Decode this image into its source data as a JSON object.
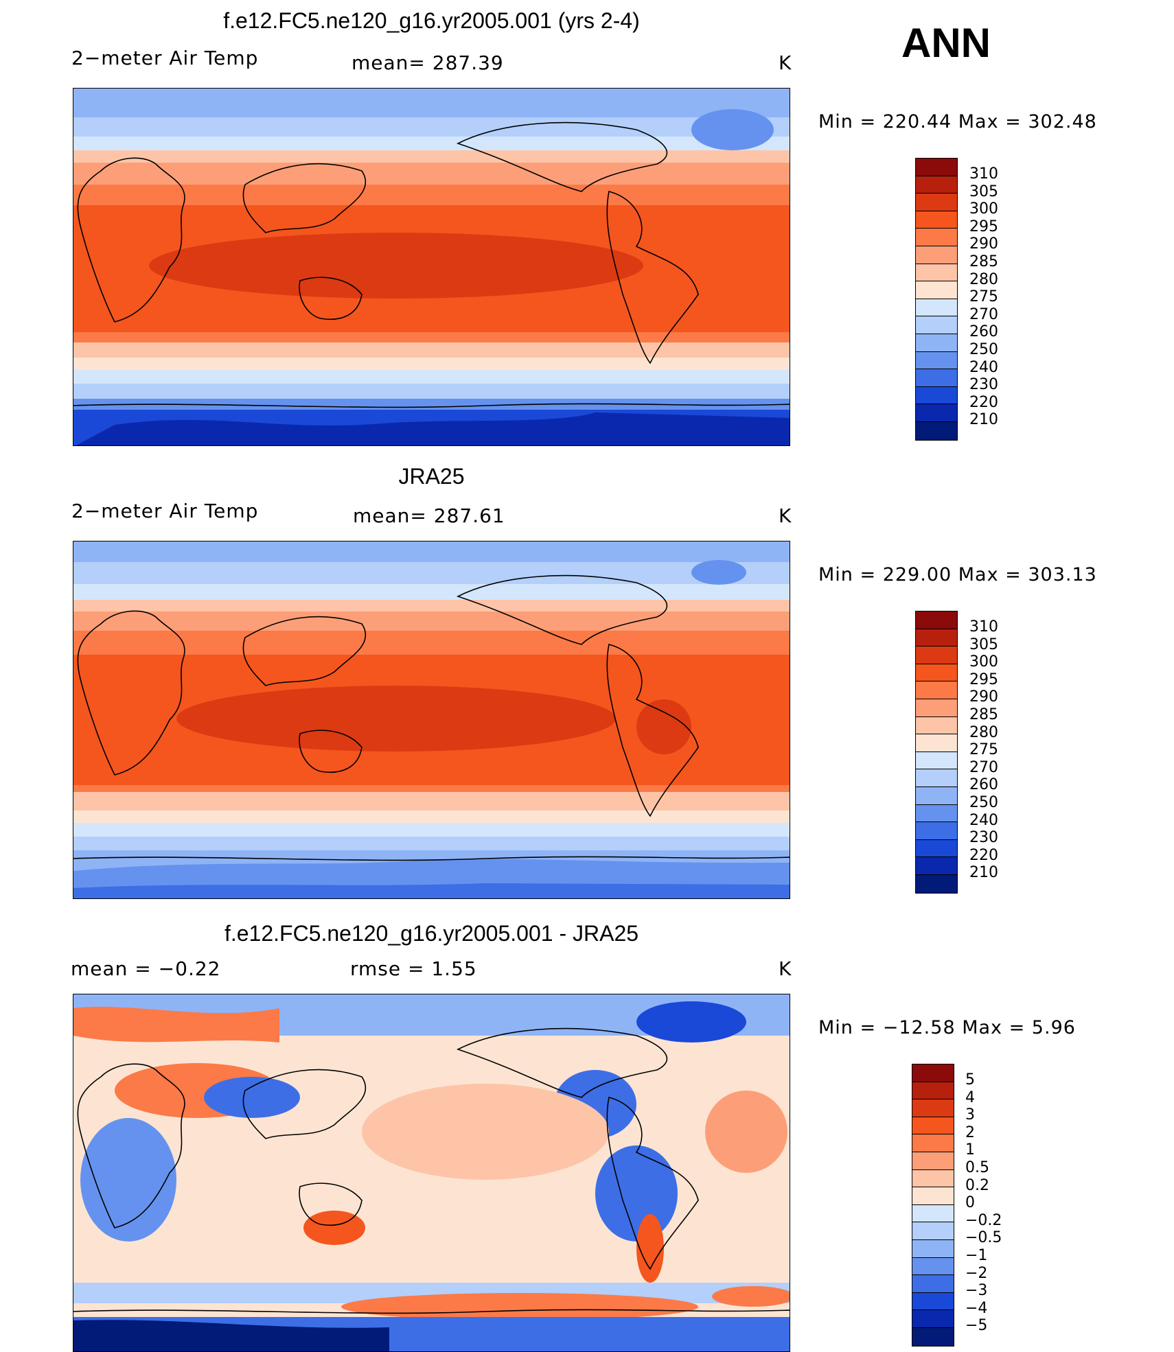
{
  "season": "ANN",
  "panels": [
    {
      "title": "f.e12.FC5.ne120_g16.yr2005.001 (yrs 2-4)",
      "left_label": "2−meter Air Temp",
      "center_label": "mean=  287.39",
      "units": "K",
      "minmax": "Min  =  220.44  Max  =  302.48",
      "colorbar": {
        "levels": [
          "310",
          "305",
          "300",
          "295",
          "290",
          "285",
          "280",
          "275",
          "270",
          "260",
          "250",
          "240",
          "230",
          "220",
          "210"
        ],
        "colors": [
          "#8b0a0a",
          "#b8200e",
          "#dc3a12",
          "#f4561e",
          "#fb7a47",
          "#fc9f78",
          "#fdc4a8",
          "#fde4d2",
          "#d4e6fb",
          "#b3cffa",
          "#8fb4f6",
          "#6592ee",
          "#3d6ee6",
          "#1a49d8",
          "#0a28ae",
          "#021a78"
        ]
      }
    },
    {
      "title": "JRA25",
      "left_label": "2−meter Air Temp",
      "center_label": "mean=  287.61",
      "units": "K",
      "minmax": "Min  =  229.00  Max  =  303.13",
      "colorbar": {
        "levels": [
          "310",
          "305",
          "300",
          "295",
          "290",
          "285",
          "280",
          "275",
          "270",
          "260",
          "250",
          "240",
          "230",
          "220",
          "210"
        ],
        "colors": [
          "#8b0a0a",
          "#b8200e",
          "#dc3a12",
          "#f4561e",
          "#fb7a47",
          "#fc9f78",
          "#fdc4a8",
          "#fde4d2",
          "#d4e6fb",
          "#b3cffa",
          "#8fb4f6",
          "#6592ee",
          "#3d6ee6",
          "#1a49d8",
          "#0a28ae",
          "#021a78"
        ]
      }
    },
    {
      "title": "f.e12.FC5.ne120_g16.yr2005.001 - JRA25",
      "left_label": "mean  =    −0.22",
      "center_label": "rmse  =     1.55",
      "units": "K",
      "minmax": "Min  =  −12.58  Max  =      5.96",
      "colorbar": {
        "levels": [
          "5",
          "4",
          "3",
          "2",
          "1",
          "0.5",
          "0.2",
          "0",
          "−0.2",
          "−0.5",
          "−1",
          "−2",
          "−3",
          "−4",
          "−5"
        ],
        "colors": [
          "#8b0a0a",
          "#b8200e",
          "#dc3a12",
          "#f4561e",
          "#fb7a47",
          "#fc9f78",
          "#fdc4a8",
          "#fde4d2",
          "#d4e6fb",
          "#b3cffa",
          "#8fb4f6",
          "#6592ee",
          "#3d6ee6",
          "#1a49d8",
          "#0a28ae",
          "#021a78"
        ]
      }
    }
  ]
}
